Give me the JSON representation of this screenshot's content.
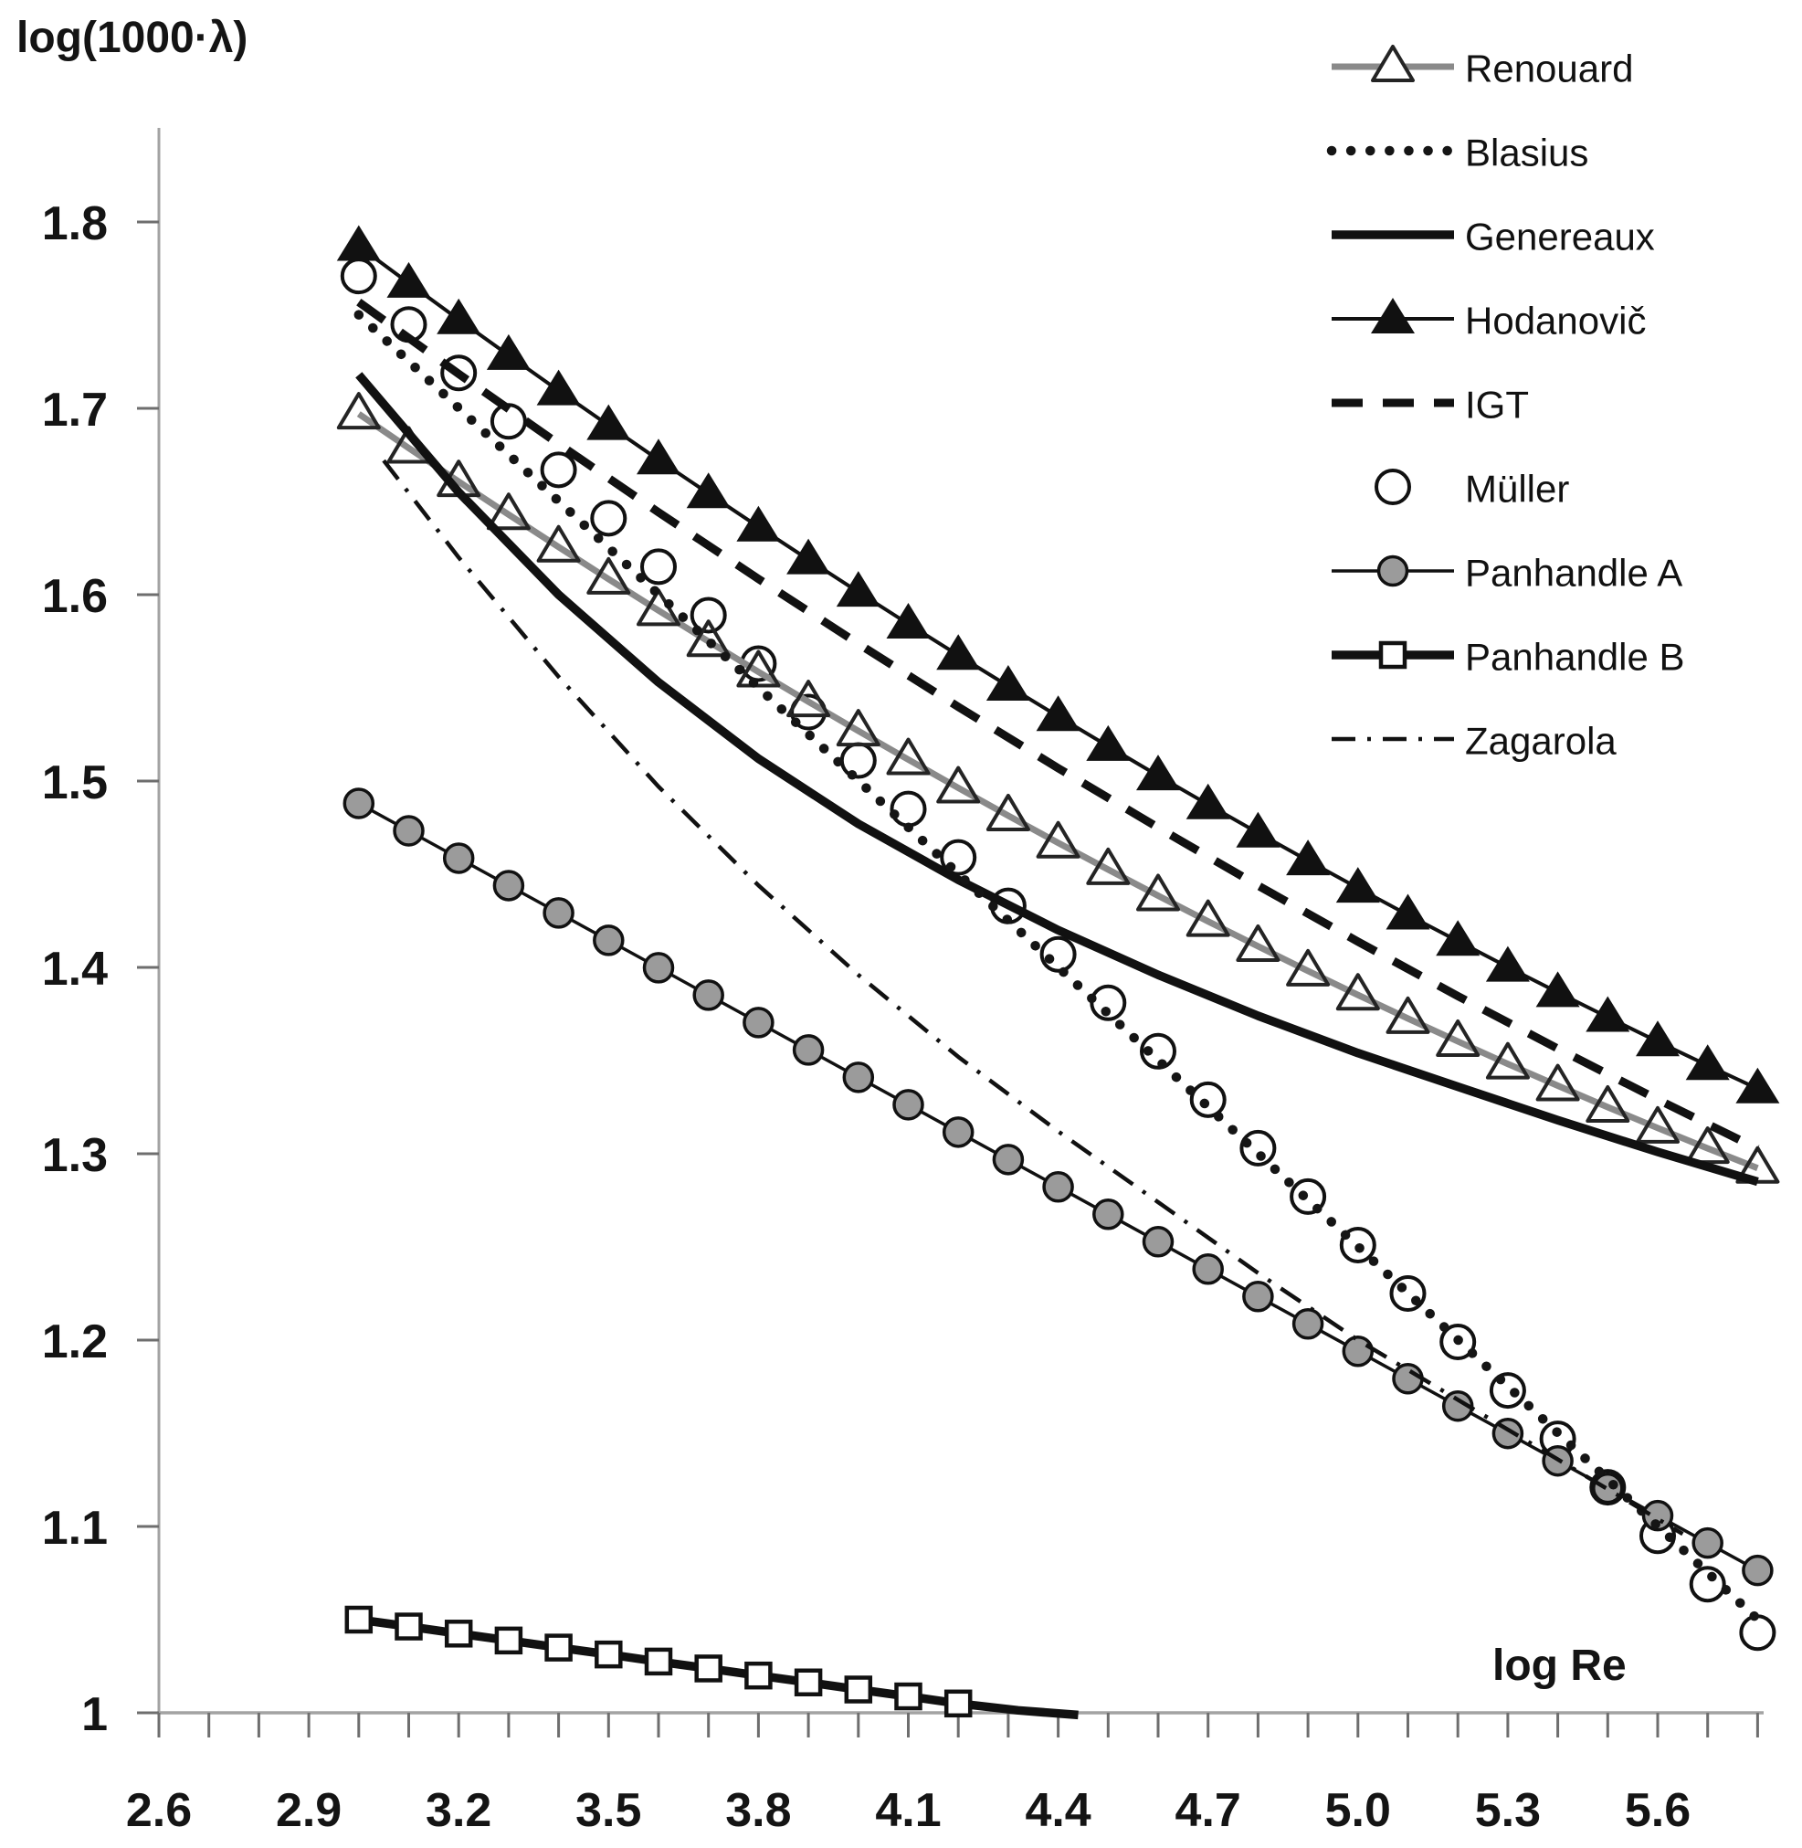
{
  "figure": {
    "background": "#ffffff",
    "text_color": "#141414",
    "axis_line_color": "#a3a3a3",
    "tick_color": "#6e6e6e"
  },
  "chart_data": {
    "type": "line",
    "title": "",
    "ylabel": "log(1000·λ)",
    "xlabel": "log Re",
    "xlim": [
      2.55,
      5.86
    ],
    "ylim": [
      0.972,
      1.852
    ],
    "grid": false,
    "legend_position": "upper-right-inside",
    "x_axis": {
      "minor_tick_step": 0.1,
      "tick_range": [
        2.6,
        5.8
      ],
      "labels": [
        {
          "v": 2.6,
          "t": "2.6"
        },
        {
          "v": 2.9,
          "t": "2.9"
        },
        {
          "v": 3.2,
          "t": "3.2"
        },
        {
          "v": 3.5,
          "t": "3.5"
        },
        {
          "v": 3.8,
          "t": "3.8"
        },
        {
          "v": 4.1,
          "t": "4.1"
        },
        {
          "v": 4.4,
          "t": "4.4"
        },
        {
          "v": 4.7,
          "t": "4.7"
        },
        {
          "v": 5.0,
          "t": "5.0"
        },
        {
          "v": 5.3,
          "t": "5.3"
        },
        {
          "v": 5.6,
          "t": "5.6"
        }
      ]
    },
    "y_axis": {
      "labels": [
        {
          "v": 1.8,
          "t": "1.8"
        },
        {
          "v": 1.7,
          "t": "1.7"
        },
        {
          "v": 1.6,
          "t": "1.6"
        },
        {
          "v": 1.5,
          "t": "1.5"
        },
        {
          "v": 1.4,
          "t": "1.4"
        },
        {
          "v": 1.3,
          "t": "1.3"
        },
        {
          "v": 1.2,
          "t": "1.2"
        },
        {
          "v": 1.1,
          "t": "1.1"
        },
        {
          "v": 1.0,
          "t": "1"
        }
      ]
    },
    "series": [
      {
        "name": "renouard",
        "label": "Renouard",
        "z": 2,
        "line": {
          "color": "#8a8a8a",
          "width": 7
        },
        "marker": {
          "shape": "triangle-open",
          "stroke": "#242424",
          "stroke_width": 4,
          "half_w": 22,
          "half_up": 22,
          "half_dn": 15
        },
        "points": [
          [
            3.0,
            1.697
          ],
          [
            3.1,
            1.6787
          ],
          [
            3.2,
            1.6607
          ],
          [
            3.3,
            1.643
          ],
          [
            3.4,
            1.6256
          ],
          [
            3.5,
            1.6084
          ],
          [
            3.6,
            1.5915
          ],
          [
            3.7,
            1.5749
          ],
          [
            3.8,
            1.5586
          ],
          [
            3.9,
            1.5426
          ],
          [
            4.0,
            1.5269
          ],
          [
            4.1,
            1.5115
          ],
          [
            4.2,
            1.4963
          ],
          [
            4.3,
            1.4814
          ],
          [
            4.4,
            1.4668
          ],
          [
            4.5,
            1.4525
          ],
          [
            4.6,
            1.4385
          ],
          [
            4.7,
            1.4247
          ],
          [
            4.8,
            1.4113
          ],
          [
            4.9,
            1.3981
          ],
          [
            5.0,
            1.3852
          ],
          [
            5.1,
            1.3726
          ],
          [
            5.2,
            1.3603
          ],
          [
            5.3,
            1.3482
          ],
          [
            5.4,
            1.3365
          ],
          [
            5.5,
            1.325
          ],
          [
            5.6,
            1.3138
          ],
          [
            5.7,
            1.3029
          ],
          [
            5.8,
            1.2923
          ]
        ]
      },
      {
        "name": "blasius",
        "label": "Blasius",
        "z": 6,
        "line": {
          "color": "#151515",
          "width": 10.5,
          "dash": "0.1 21",
          "cap": "round"
        },
        "marker": null,
        "points": [
          [
            3.0,
            1.7502
          ],
          [
            5.81,
            1.0477
          ]
        ]
      },
      {
        "name": "genereaux",
        "label": "Genereaux",
        "z": 5,
        "line": {
          "color": "#111111",
          "width": 9.5
        },
        "marker": null,
        "points": [
          [
            3.0,
            1.718
          ],
          [
            3.2,
            1.655
          ],
          [
            3.4,
            1.6
          ],
          [
            3.6,
            1.553
          ],
          [
            3.8,
            1.512
          ],
          [
            4.0,
            1.477
          ],
          [
            4.2,
            1.447
          ],
          [
            4.4,
            1.42
          ],
          [
            4.6,
            1.396
          ],
          [
            4.8,
            1.374
          ],
          [
            5.0,
            1.354
          ],
          [
            5.2,
            1.336
          ],
          [
            5.4,
            1.318
          ],
          [
            5.6,
            1.301
          ],
          [
            5.8,
            1.285
          ]
        ]
      },
      {
        "name": "hodanovic",
        "label": "Hodanovič",
        "z": 5.5,
        "line": {
          "color": "#111111",
          "width": 4
        },
        "marker": {
          "shape": "triangle-filled",
          "fill": "#111111",
          "half_w": 24,
          "half_up": 23,
          "half_dn": 16
        },
        "points": [
          [
            3.0,
            1.787
          ],
          [
            3.1,
            1.7672
          ],
          [
            3.2,
            1.7477
          ],
          [
            3.3,
            1.7285
          ],
          [
            3.4,
            1.7095
          ],
          [
            3.5,
            1.6909
          ],
          [
            3.6,
            1.6724
          ],
          [
            3.7,
            1.6543
          ],
          [
            3.8,
            1.6364
          ],
          [
            3.9,
            1.6188
          ],
          [
            4.0,
            1.6014
          ],
          [
            4.1,
            1.5843
          ],
          [
            4.2,
            1.5675
          ],
          [
            4.3,
            1.551
          ],
          [
            4.4,
            1.5347
          ],
          [
            4.5,
            1.5187
          ],
          [
            4.6,
            1.5029
          ],
          [
            4.7,
            1.4874
          ],
          [
            4.8,
            1.4722
          ],
          [
            4.9,
            1.4573
          ],
          [
            5.0,
            1.4426
          ],
          [
            5.1,
            1.4282
          ],
          [
            5.2,
            1.4141
          ],
          [
            5.3,
            1.4002
          ],
          [
            5.4,
            1.3866
          ],
          [
            5.5,
            1.3733
          ],
          [
            5.6,
            1.3602
          ],
          [
            5.7,
            1.3474
          ],
          [
            5.8,
            1.3349
          ]
        ]
      },
      {
        "name": "igt",
        "label": "IGT",
        "z": 7,
        "line": {
          "color": "#111111",
          "width": 9,
          "dash": "34 22"
        },
        "marker": null,
        "points": [
          [
            3.0,
            1.757
          ],
          [
            3.2,
            1.7185
          ],
          [
            3.4,
            1.6809
          ],
          [
            3.6,
            1.6442
          ],
          [
            3.8,
            1.6085
          ],
          [
            4.0,
            1.5737
          ],
          [
            4.2,
            1.5398
          ],
          [
            4.4,
            1.5069
          ],
          [
            4.6,
            1.475
          ],
          [
            4.8,
            1.4439
          ],
          [
            5.0,
            1.4138
          ],
          [
            5.2,
            1.3846
          ],
          [
            5.4,
            1.3564
          ],
          [
            5.6,
            1.3291
          ],
          [
            5.8,
            1.3027
          ]
        ]
      },
      {
        "name": "muller",
        "label": "Müller",
        "z": 1,
        "line": null,
        "marker": {
          "shape": "circle-open",
          "stroke": "#111111",
          "stroke_width": 4,
          "r": 18
        },
        "points": [
          [
            3.0,
            1.771
          ],
          [
            3.1,
            1.745
          ],
          [
            3.2,
            1.719
          ],
          [
            3.3,
            1.693
          ],
          [
            3.4,
            1.667
          ],
          [
            3.5,
            1.641
          ],
          [
            3.6,
            1.615
          ],
          [
            3.7,
            1.589
          ],
          [
            3.8,
            1.563
          ],
          [
            3.9,
            1.537
          ],
          [
            4.0,
            1.511
          ],
          [
            4.1,
            1.485
          ],
          [
            4.2,
            1.459
          ],
          [
            4.3,
            1.433
          ],
          [
            4.4,
            1.407
          ],
          [
            4.5,
            1.381
          ],
          [
            4.6,
            1.355
          ],
          [
            4.7,
            1.329
          ],
          [
            4.8,
            1.303
          ],
          [
            4.9,
            1.277
          ],
          [
            5.0,
            1.251
          ],
          [
            5.1,
            1.225
          ],
          [
            5.2,
            1.199
          ],
          [
            5.3,
            1.173
          ],
          [
            5.4,
            1.147
          ],
          [
            5.5,
            1.121
          ],
          [
            5.6,
            1.095
          ],
          [
            5.7,
            1.069
          ],
          [
            5.8,
            1.043
          ]
        ]
      },
      {
        "name": "panhandle_a",
        "label": "Panhandle A",
        "z": 3,
        "line": {
          "color": "#111111",
          "width": 3.5
        },
        "marker": {
          "shape": "circle-filled",
          "stroke": "#111111",
          "stroke_width": 3.5,
          "fill": "#9b9b9b",
          "r": 15.5
        },
        "points": [
          [
            3.0,
            1.488
          ],
          [
            3.1,
            1.4733
          ],
          [
            3.2,
            1.4586
          ],
          [
            3.3,
            1.4439
          ],
          [
            3.4,
            1.4292
          ],
          [
            3.5,
            1.4145
          ],
          [
            3.6,
            1.3998
          ],
          [
            3.7,
            1.3851
          ],
          [
            3.8,
            1.3704
          ],
          [
            3.9,
            1.3557
          ],
          [
            4.0,
            1.341
          ],
          [
            4.1,
            1.3263
          ],
          [
            4.2,
            1.3116
          ],
          [
            4.3,
            1.2969
          ],
          [
            4.4,
            1.2822
          ],
          [
            4.5,
            1.2675
          ],
          [
            4.6,
            1.2528
          ],
          [
            4.7,
            1.2381
          ],
          [
            4.8,
            1.2234
          ],
          [
            4.9,
            1.2087
          ],
          [
            5.0,
            1.194
          ],
          [
            5.1,
            1.1793
          ],
          [
            5.2,
            1.1646
          ],
          [
            5.3,
            1.1499
          ],
          [
            5.4,
            1.1352
          ],
          [
            5.5,
            1.1205
          ],
          [
            5.6,
            1.1058
          ],
          [
            5.7,
            1.0911
          ],
          [
            5.8,
            1.0764
          ]
        ]
      },
      {
        "name": "panhandle_b",
        "label": "Panhandle B",
        "z": 3.5,
        "line": {
          "color": "#111111",
          "width": 9.5
        },
        "marker": {
          "shape": "square-open",
          "stroke": "#111111",
          "stroke_width": 4.5,
          "fill": "#ffffff",
          "half": 13
        },
        "points": [
          [
            3.0,
            1.05
          ],
          [
            3.1,
            1.0463
          ],
          [
            3.2,
            1.0425
          ],
          [
            3.3,
            1.0388
          ],
          [
            3.4,
            1.035
          ],
          [
            3.5,
            1.0313
          ],
          [
            3.6,
            1.0275
          ],
          [
            3.7,
            1.0238
          ],
          [
            3.8,
            1.02
          ],
          [
            3.9,
            1.0163
          ],
          [
            4.0,
            1.0125
          ],
          [
            4.1,
            1.0088
          ],
          [
            4.2,
            1.005
          ]
        ],
        "line_points": [
          [
            3.0,
            1.05
          ],
          [
            3.1,
            1.0463
          ],
          [
            3.2,
            1.0425
          ],
          [
            3.3,
            1.0388
          ],
          [
            3.4,
            1.035
          ],
          [
            3.5,
            1.0313
          ],
          [
            3.6,
            1.0275
          ],
          [
            3.7,
            1.0238
          ],
          [
            3.8,
            1.02
          ],
          [
            3.9,
            1.0163
          ],
          [
            4.0,
            1.0125
          ],
          [
            4.1,
            1.0088
          ],
          [
            4.2,
            1.005
          ],
          [
            4.32,
            1.0013
          ],
          [
            4.44,
            0.9988
          ]
        ]
      },
      {
        "name": "zagarola",
        "label": "Zagarola",
        "z": 8,
        "line": {
          "color": "#111111",
          "width": 4.5,
          "dash": "26 13 4 13"
        },
        "marker": null,
        "points": [
          [
            3.05,
            1.672
          ],
          [
            3.2,
            1.62
          ],
          [
            3.4,
            1.556
          ],
          [
            3.6,
            1.497
          ],
          [
            3.8,
            1.444
          ],
          [
            4.0,
            1.396
          ],
          [
            4.2,
            1.352
          ],
          [
            4.4,
            1.312
          ],
          [
            4.6,
            1.274
          ],
          [
            4.8,
            1.236
          ],
          [
            5.0,
            1.2
          ],
          [
            5.2,
            1.168
          ],
          [
            5.4,
            1.136
          ],
          [
            5.6,
            1.104
          ],
          [
            5.65,
            1.096
          ]
        ]
      }
    ],
    "legend_order": [
      "renouard",
      "blasius",
      "genereaux",
      "hodanovic",
      "igt",
      "muller",
      "panhandle_a",
      "panhandle_b",
      "zagarola"
    ]
  }
}
